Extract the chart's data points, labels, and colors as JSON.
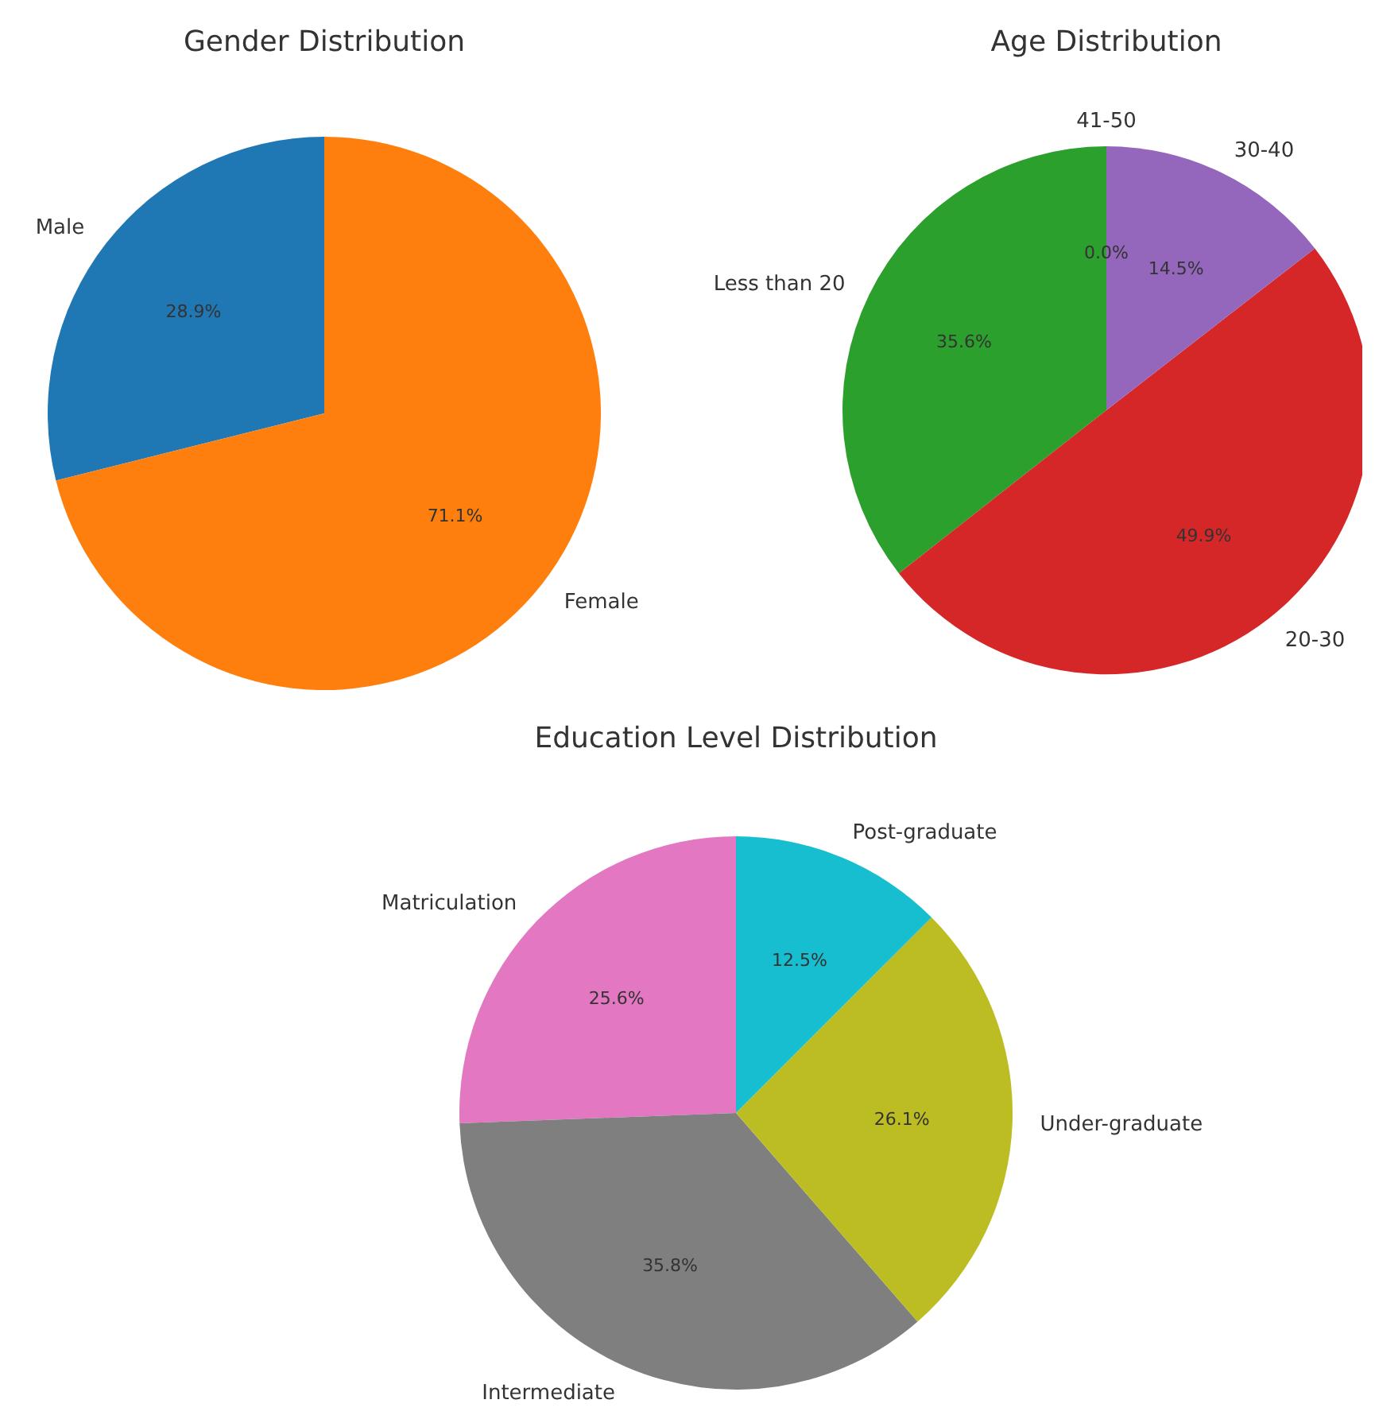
{
  "chart_data": [
    {
      "type": "pie",
      "title": "Gender Distribution",
      "categories": [
        "Male",
        "Female"
      ],
      "values": [
        28.9,
        71.1
      ],
      "colors": [
        "#1f77b4",
        "#ff7f0e"
      ],
      "value_labels": [
        "28.9%",
        "71.1%"
      ]
    },
    {
      "type": "pie",
      "title": "Age Distribution",
      "categories": [
        "Less than 20",
        "20-30",
        "30-40",
        "41-50"
      ],
      "values": [
        35.6,
        49.9,
        14.5,
        0.0
      ],
      "colors": [
        "#2ca02c",
        "#d62728",
        "#9467bd",
        "#8c564b"
      ],
      "value_labels": [
        "35.6%",
        "49.9%",
        "14.5%",
        "0.0%"
      ]
    },
    {
      "type": "pie",
      "title": "Education Level Distribution",
      "categories": [
        "Matriculation",
        "Intermediate",
        "Under-graduate",
        "Post-graduate"
      ],
      "values": [
        25.6,
        35.8,
        26.1,
        12.5
      ],
      "colors": [
        "#e377c2",
        "#7f7f7f",
        "#bcbd22",
        "#17becf"
      ],
      "value_labels": [
        "25.6%",
        "35.8%",
        "26.1%",
        "12.5%"
      ]
    }
  ]
}
